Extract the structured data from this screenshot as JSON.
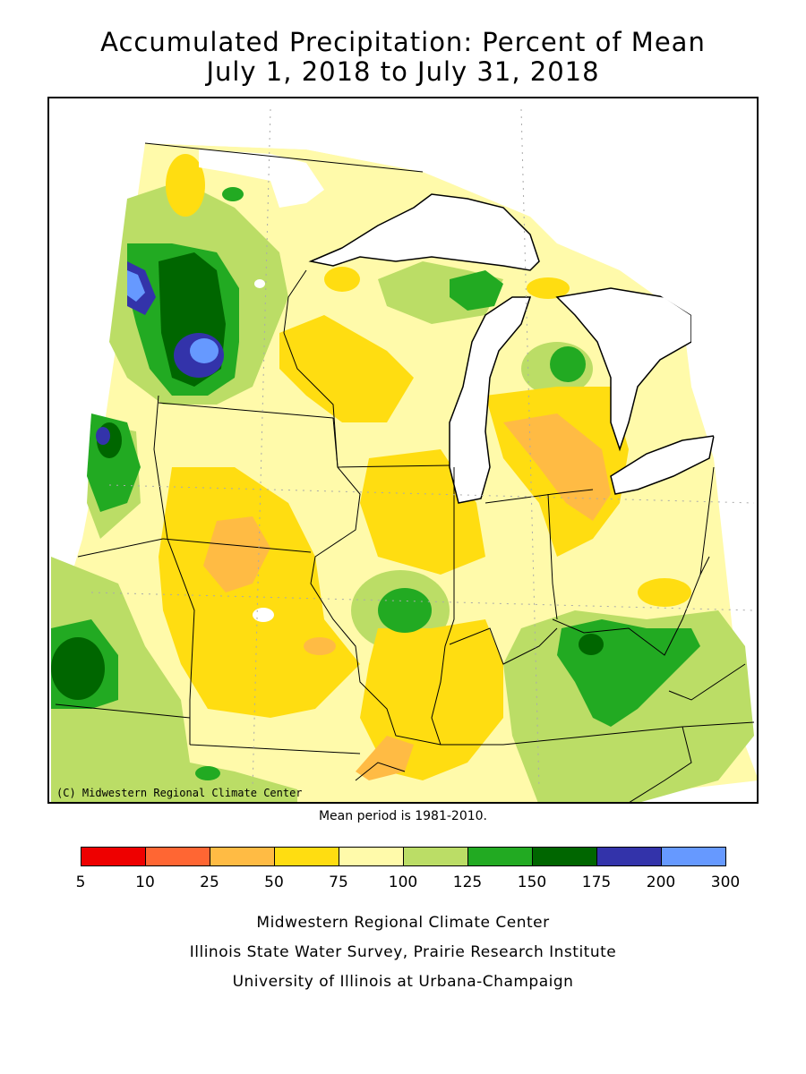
{
  "title_line1": "Accumulated Precipitation: Percent of Mean",
  "title_line2": "July 1, 2018 to July 31, 2018",
  "copyright": "(C) Midwestern Regional Climate Center",
  "mean_period": "Mean period is 1981-2010.",
  "legend": {
    "colors": [
      "#ee0000",
      "#ff6633",
      "#ffbb44",
      "#ffdd11",
      "#fffaaa",
      "#bbdd66",
      "#22aa22",
      "#006600",
      "#3333aa",
      "#6699ff"
    ],
    "ticks": [
      "5",
      "10",
      "25",
      "50",
      "75",
      "100",
      "125",
      "150",
      "175",
      "200",
      "300"
    ]
  },
  "credits": [
    "Midwestern Regional Climate Center",
    "Illinois State Water Survey, Prairie Research Institute",
    "University of Illinois at Urbana-Champaign"
  ]
}
